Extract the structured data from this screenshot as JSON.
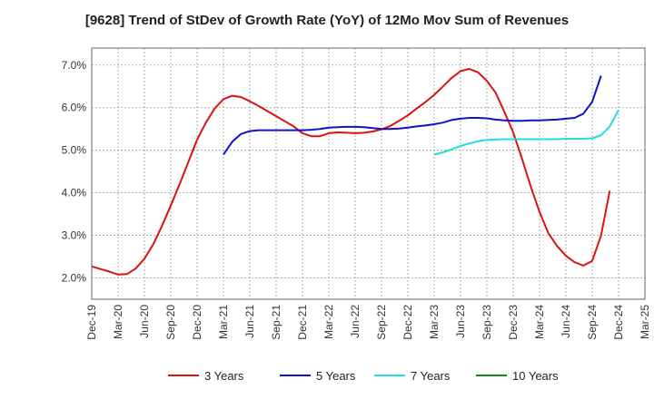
{
  "chart_data": {
    "type": "line",
    "title": "[9628]  Trend of StDev of Growth Rate (YoY) of 12Mo Mov Sum of Revenues",
    "xlabel": "",
    "ylabel": "",
    "ylim": [
      1.5,
      7.4
    ],
    "yticks": [
      2.0,
      3.0,
      4.0,
      5.0,
      6.0,
      7.0
    ],
    "ytick_labels": [
      "2.0%",
      "3.0%",
      "4.0%",
      "5.0%",
      "6.0%",
      "7.0%"
    ],
    "x_ticks": [
      "Dec-19",
      "Mar-20",
      "Jun-20",
      "Sep-20",
      "Dec-20",
      "Mar-21",
      "Jun-21",
      "Sep-21",
      "Dec-21",
      "Mar-22",
      "Jun-22",
      "Sep-22",
      "Dec-22",
      "Mar-23",
      "Jun-23",
      "Sep-23",
      "Dec-23",
      "Mar-24",
      "Jun-24",
      "Sep-24",
      "Dec-24",
      "Mar-25"
    ],
    "grid": true,
    "legend_position": "bottom",
    "series": [
      {
        "name": "3 Years",
        "color": "#dd1111",
        "start_index": 0,
        "values": [
          2.27,
          2.21,
          2.15,
          2.08,
          2.09,
          2.22,
          2.45,
          2.79,
          3.22,
          3.7,
          4.2,
          4.72,
          5.25,
          5.65,
          5.98,
          6.2,
          6.28,
          6.25,
          6.15,
          6.04,
          5.92,
          5.8,
          5.68,
          5.56,
          5.4,
          5.33,
          5.33,
          5.4,
          5.42,
          5.41,
          5.4,
          5.41,
          5.44,
          5.49,
          5.57,
          5.69,
          5.82,
          5.98,
          6.13,
          6.3,
          6.5,
          6.7,
          6.86,
          6.91,
          6.83,
          6.63,
          6.35,
          5.9,
          5.42,
          4.8,
          4.15,
          3.55,
          3.05,
          2.75,
          2.52,
          2.37,
          2.29,
          2.4,
          3.0,
          4.05
        ]
      },
      {
        "name": "5 Years",
        "color": "#1111cc",
        "start_index": 15,
        "values": [
          4.9,
          5.2,
          5.38,
          5.45,
          5.47,
          5.47,
          5.47,
          5.47,
          5.47,
          5.47,
          5.48,
          5.5,
          5.53,
          5.54,
          5.55,
          5.55,
          5.54,
          5.52,
          5.5,
          5.5,
          5.51,
          5.53,
          5.56,
          5.58,
          5.61,
          5.65,
          5.71,
          5.74,
          5.76,
          5.76,
          5.75,
          5.72,
          5.7,
          5.69,
          5.69,
          5.7,
          5.7,
          5.71,
          5.72,
          5.74,
          5.76,
          5.86,
          6.14,
          6.75
        ]
      },
      {
        "name": "7 Years",
        "color": "#22dddd",
        "start_index": 39,
        "values": [
          4.9,
          4.95,
          5.02,
          5.1,
          5.16,
          5.21,
          5.24,
          5.25,
          5.26,
          5.26,
          5.26,
          5.26,
          5.26,
          5.26,
          5.26,
          5.27,
          5.27,
          5.27,
          5.28,
          5.35,
          5.56,
          5.95
        ]
      },
      {
        "name": "10 Years",
        "color": "#118811",
        "start_index": 0,
        "values": []
      }
    ]
  }
}
